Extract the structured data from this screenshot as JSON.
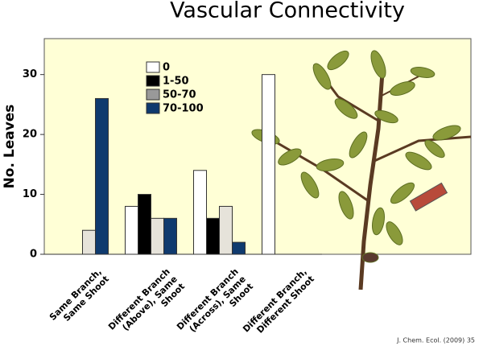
{
  "chart_data": {
    "type": "bar",
    "title": "Vascular Connectivity",
    "ylabel": "No. Leaves",
    "categories": [
      "Same Branch,\nSame Shoot",
      "Different Branch\n(Above), Same\nShoot",
      "Different Branch\n(Across), Same\nShoot",
      "Different Branch,\nDifferent Shoot"
    ],
    "series": [
      {
        "name": "0",
        "color": "#ffffff",
        "values": [
          0,
          8,
          14,
          30
        ]
      },
      {
        "name": "1-50",
        "color": "#000000",
        "values": [
          0,
          10,
          6,
          0
        ]
      },
      {
        "name": "50-70",
        "color": "#e6e3da",
        "values": [
          4,
          6,
          8,
          0
        ]
      },
      {
        "name": "70-100",
        "color": "#0f3a6e",
        "values": [
          26,
          6,
          2,
          0
        ]
      }
    ],
    "ylim": [
      0,
      36
    ],
    "yticks": [
      0,
      10,
      20,
      30
    ],
    "legend": "top-center",
    "source": "J. Chem. Ecol. (2009) 35"
  }
}
